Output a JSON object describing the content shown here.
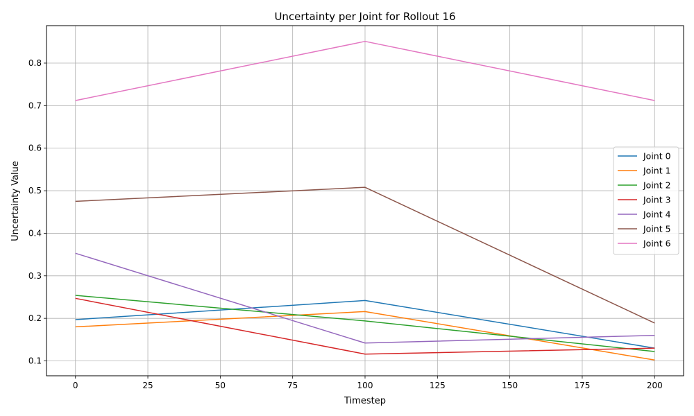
{
  "chart_data": {
    "type": "line",
    "title": "Uncertainty per Joint for Rollout 16",
    "xlabel": "Timestep",
    "ylabel": "Uncertainty Value",
    "xlim": [
      -10,
      210
    ],
    "ylim": [
      0.065,
      0.888
    ],
    "xticks": [
      0,
      25,
      50,
      75,
      100,
      125,
      150,
      175,
      200
    ],
    "yticks": [
      0.1,
      0.2,
      0.3,
      0.4,
      0.5,
      0.6,
      0.7,
      0.8
    ],
    "ytick_labels": [
      "0.1",
      "0.2",
      "0.3",
      "0.4",
      "0.5",
      "0.6",
      "0.7",
      "0.8"
    ],
    "grid": true,
    "legend_position": "center-right",
    "x": [
      0,
      100,
      200
    ],
    "series": [
      {
        "name": "Joint 0",
        "color": "#1f77b4",
        "values": [
          0.197,
          0.242,
          0.13
        ]
      },
      {
        "name": "Joint 1",
        "color": "#ff7f0e",
        "values": [
          0.18,
          0.216,
          0.102
        ]
      },
      {
        "name": "Joint 2",
        "color": "#2ca02c",
        "values": [
          0.254,
          0.194,
          0.122
        ]
      },
      {
        "name": "Joint 3",
        "color": "#d62728",
        "values": [
          0.247,
          0.116,
          0.13
        ]
      },
      {
        "name": "Joint 4",
        "color": "#9467bd",
        "values": [
          0.353,
          0.142,
          0.16
        ]
      },
      {
        "name": "Joint 5",
        "color": "#8c564b",
        "values": [
          0.475,
          0.508,
          0.189
        ]
      },
      {
        "name": "Joint 6",
        "color": "#e377c2",
        "values": [
          0.712,
          0.851,
          0.712
        ]
      }
    ]
  }
}
